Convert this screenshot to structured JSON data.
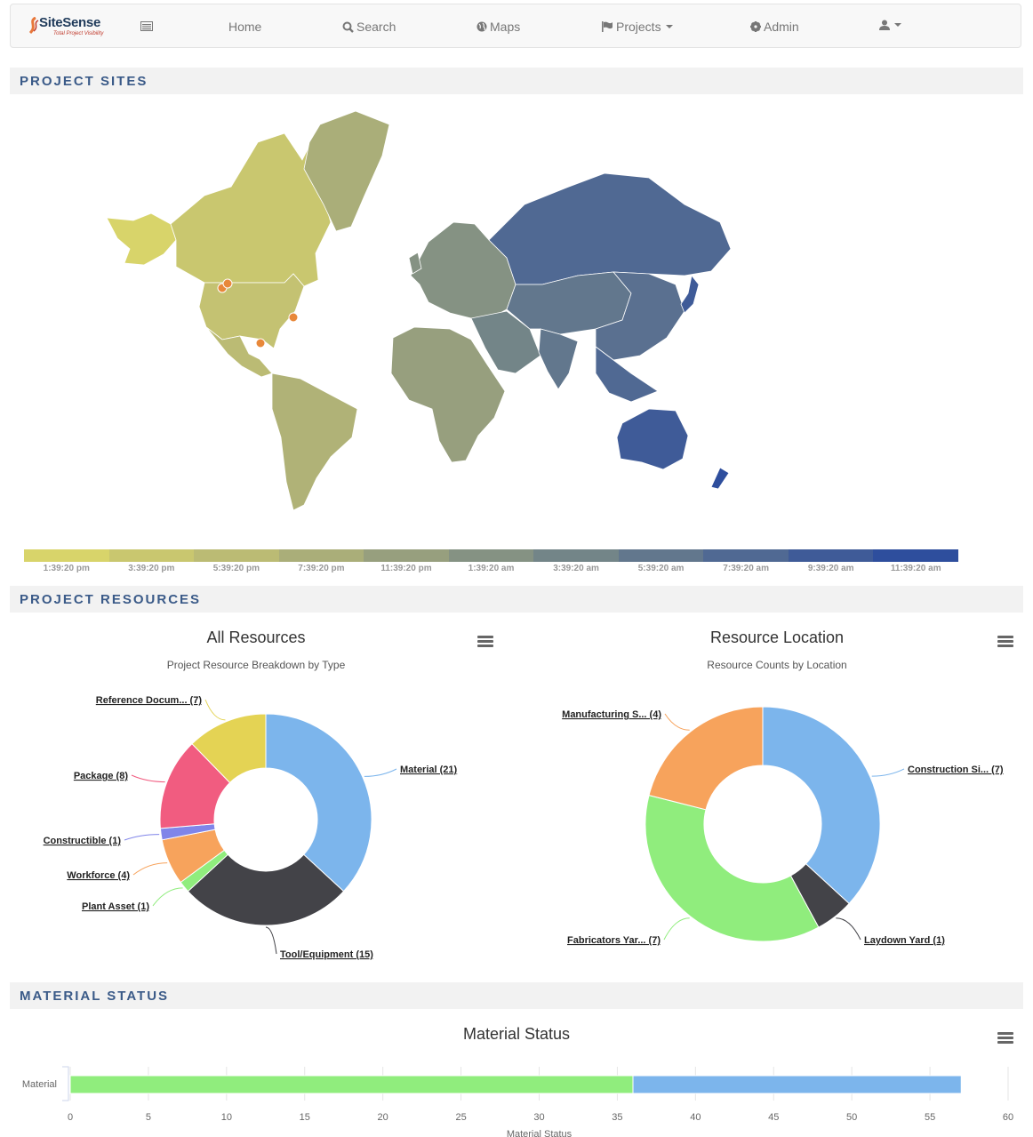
{
  "navbar": {
    "brand_name": "SiteSense",
    "brand_tagline": "Total Project Visibility",
    "items": [
      {
        "label": "Home"
      },
      {
        "label": "Search"
      },
      {
        "label": "Maps"
      },
      {
        "label": "Projects"
      },
      {
        "label": "Admin"
      }
    ]
  },
  "sections": {
    "project_sites": "PROJECT SITES",
    "project_resources": "PROJECT RESOURCES",
    "material_status": "MATERIAL STATUS"
  },
  "map_legend": {
    "colors": [
      "#d8d46a",
      "#c9c76f",
      "#bbbb74",
      "#aaae79",
      "#979f7e",
      "#859283",
      "#738588",
      "#62778d",
      "#506993",
      "#3f5b98",
      "#2e4e9d"
    ],
    "labels": [
      "1:39:20 pm",
      "3:39:20 pm",
      "5:39:20 pm",
      "7:39:20 pm",
      "11:39:20 pm",
      "1:39:20 am",
      "3:39:20 am",
      "5:39:20 am",
      "7:39:20 am",
      "9:39:20 am",
      "11:39:20 am"
    ]
  },
  "chart_data": [
    {
      "type": "pie",
      "title": "All Resources",
      "subtitle": "Project Resource Breakdown by Type",
      "slices": [
        {
          "label": "Material (21)",
          "value": 21,
          "color": "#7cb5ec"
        },
        {
          "label": "Tool/Equipment (15)",
          "value": 15,
          "color": "#434348"
        },
        {
          "label": "Plant Asset (1)",
          "value": 1,
          "color": "#90ed7d"
        },
        {
          "label": "Workforce (4)",
          "value": 4,
          "color": "#f7a35c"
        },
        {
          "label": "Constructible (1)",
          "value": 1,
          "color": "#8085e9"
        },
        {
          "label": "Package (8)",
          "value": 8,
          "color": "#f15c80"
        },
        {
          "label": "Reference Docum... (7)",
          "value": 7,
          "color": "#e4d354"
        }
      ]
    },
    {
      "type": "pie",
      "title": "Resource Location",
      "subtitle": "Resource Counts by Location",
      "slices": [
        {
          "label": "Construction Si... (7)",
          "value": 7,
          "color": "#7cb5ec"
        },
        {
          "label": "Laydown Yard (1)",
          "value": 1,
          "color": "#434348"
        },
        {
          "label": "Fabricators Yar... (7)",
          "value": 7,
          "color": "#90ed7d"
        },
        {
          "label": "Manufacturing S... (4)",
          "value": 4,
          "color": "#f7a35c"
        }
      ]
    },
    {
      "type": "bar",
      "title": "Material Status",
      "categories": [
        "Material"
      ],
      "series": [
        {
          "value": 36,
          "color": "#90ed7d"
        },
        {
          "value": 21,
          "color": "#7cb5ec"
        }
      ],
      "xlim": [
        0,
        60
      ],
      "ticks": [
        "0",
        "5",
        "10",
        "15",
        "20",
        "25",
        "30",
        "35",
        "40",
        "45",
        "50",
        "55",
        "60"
      ],
      "axis_title": "Material Status"
    }
  ]
}
